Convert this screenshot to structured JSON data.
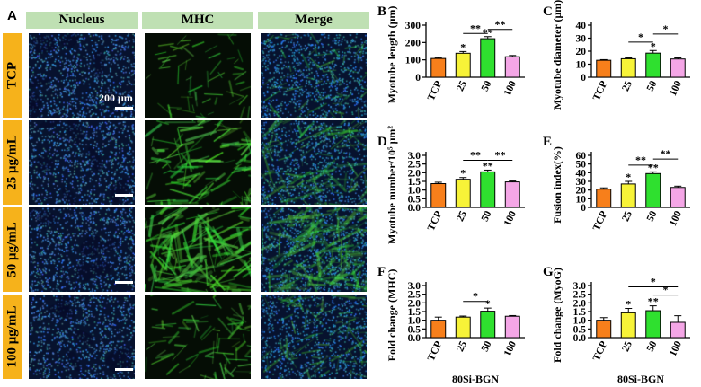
{
  "panel_a": {
    "letter": "A",
    "columns": [
      "Nucleus",
      "MHC",
      "Merge"
    ],
    "rows": [
      "TCP",
      "25 μg/mL",
      "50 μg/mL",
      "100 μg/mL"
    ],
    "scale_bar_label": "200 μm",
    "colors": {
      "nucleus": "#1e5fe0",
      "mhc": "#2fd42f",
      "row_label_bg": "#f6b21b",
      "header_bg": "#bfe0b3"
    }
  },
  "colors": {
    "TCP": "#f77f1b",
    "25": "#f7f338",
    "50": "#2fe02f",
    "100": "#f4a6e6"
  },
  "chart_data": [
    {
      "letter": "B",
      "type": "bar",
      "categories": [
        "TCP",
        "25",
        "50",
        "100"
      ],
      "values": [
        108,
        138,
        222,
        118
      ],
      "errors": [
        5,
        10,
        12,
        7
      ],
      "ylabel": "Myotube length (μm)",
      "xlabel": "",
      "ylim": [
        0,
        300
      ],
      "yticks": [
        "0",
        "100",
        "200",
        "300"
      ],
      "marks": [
        "",
        "*",
        "**",
        ""
      ],
      "brackets": [
        {
          "from": 1,
          "to": 2,
          "label": "**",
          "level": 1.0
        },
        {
          "from": 2,
          "to": 3,
          "label": "**",
          "level": 1.1
        }
      ]
    },
    {
      "letter": "C",
      "type": "bar",
      "categories": [
        "TCP",
        "25",
        "50",
        "100"
      ],
      "values": [
        13,
        14.2,
        18.5,
        14
      ],
      "errors": [
        0.5,
        0.6,
        2.0,
        0.8
      ],
      "ylabel": "Myotube diameter (μm)",
      "xlabel": "",
      "ylim": [
        0,
        40
      ],
      "yticks": [
        "0",
        "10",
        "20",
        "30",
        "40"
      ],
      "marks": [
        "",
        "",
        "*",
        ""
      ],
      "brackets": [
        {
          "from": 1,
          "to": 2,
          "label": "*",
          "level": 1.2
        },
        {
          "from": 2,
          "to": 3,
          "label": "*",
          "level": 1.5
        }
      ]
    },
    {
      "letter": "D",
      "type": "bar",
      "categories": [
        "TCP",
        "25",
        "50",
        "100"
      ],
      "values": [
        1.37,
        1.62,
        2.05,
        1.47
      ],
      "errors": [
        0.08,
        0.1,
        0.1,
        0.05
      ],
      "ylabel": "Myotube  number/10⁵ μm²",
      "xlabel": "",
      "ylim": [
        0,
        3.0
      ],
      "yticks": [
        "0.0",
        "0.5",
        "1.0",
        "1.5",
        "2.0",
        "2.5",
        "3.0"
      ],
      "marks": [
        "",
        "*",
        "**",
        ""
      ],
      "brackets": [
        {
          "from": 1,
          "to": 2,
          "label": "**",
          "level": 1.18
        },
        {
          "from": 2,
          "to": 3,
          "label": "**",
          "level": 1.18
        }
      ]
    },
    {
      "letter": "E",
      "type": "bar",
      "categories": [
        "TCP",
        "25",
        "50",
        "100"
      ],
      "values": [
        21,
        27,
        39,
        23
      ],
      "errors": [
        1.5,
        3,
        2,
        1.5
      ],
      "ylabel": "Fusion index(%)",
      "xlabel": "",
      "ylim": [
        0,
        60
      ],
      "yticks": [
        "0",
        "10",
        "20",
        "30",
        "40",
        "50",
        "60"
      ],
      "marks": [
        "",
        "*",
        "**",
        ""
      ],
      "brackets": [
        {
          "from": 1,
          "to": 2,
          "label": "**",
          "level": 1.1
        },
        {
          "from": 2,
          "to": 3,
          "label": "**",
          "level": 1.27
        }
      ]
    },
    {
      "letter": "F",
      "type": "bar",
      "categories": [
        "TCP",
        "25",
        "50",
        "100"
      ],
      "values": [
        1.0,
        1.18,
        1.52,
        1.23
      ],
      "errors": [
        0.18,
        0.06,
        0.18,
        0.04
      ],
      "ylabel": "Fold change (MHC)",
      "xlabel": "80Si-BGN",
      "ylim": [
        0,
        3.0
      ],
      "yticks": [
        "0.0",
        "0.5",
        "1.0",
        "1.5",
        "2.0",
        "2.5",
        "3.0"
      ],
      "marks": [
        "",
        "",
        "*",
        ""
      ],
      "brackets": [
        {
          "from": 1,
          "to": 2,
          "label": "*",
          "level": 1.12
        }
      ]
    },
    {
      "letter": "G",
      "type": "bar",
      "categories": [
        "TCP",
        "25",
        "50",
        "100"
      ],
      "values": [
        1.0,
        1.43,
        1.55,
        0.88
      ],
      "errors": [
        0.15,
        0.25,
        0.28,
        0.38
      ],
      "ylabel": "Fold change (MyoG)",
      "xlabel": "80Si-BGN",
      "ylim": [
        0,
        3.0
      ],
      "yticks": [
        "0.0",
        "0.5",
        "1.0",
        "1.5",
        "2.0",
        "2.5",
        "3.0"
      ],
      "marks": [
        "",
        "*",
        "**",
        ""
      ],
      "brackets": [
        {
          "from": 1,
          "to": 3,
          "label": "*",
          "level": 1.5
        },
        {
          "from": 2,
          "to": 3,
          "label": "*",
          "level": 1.24
        }
      ]
    }
  ]
}
